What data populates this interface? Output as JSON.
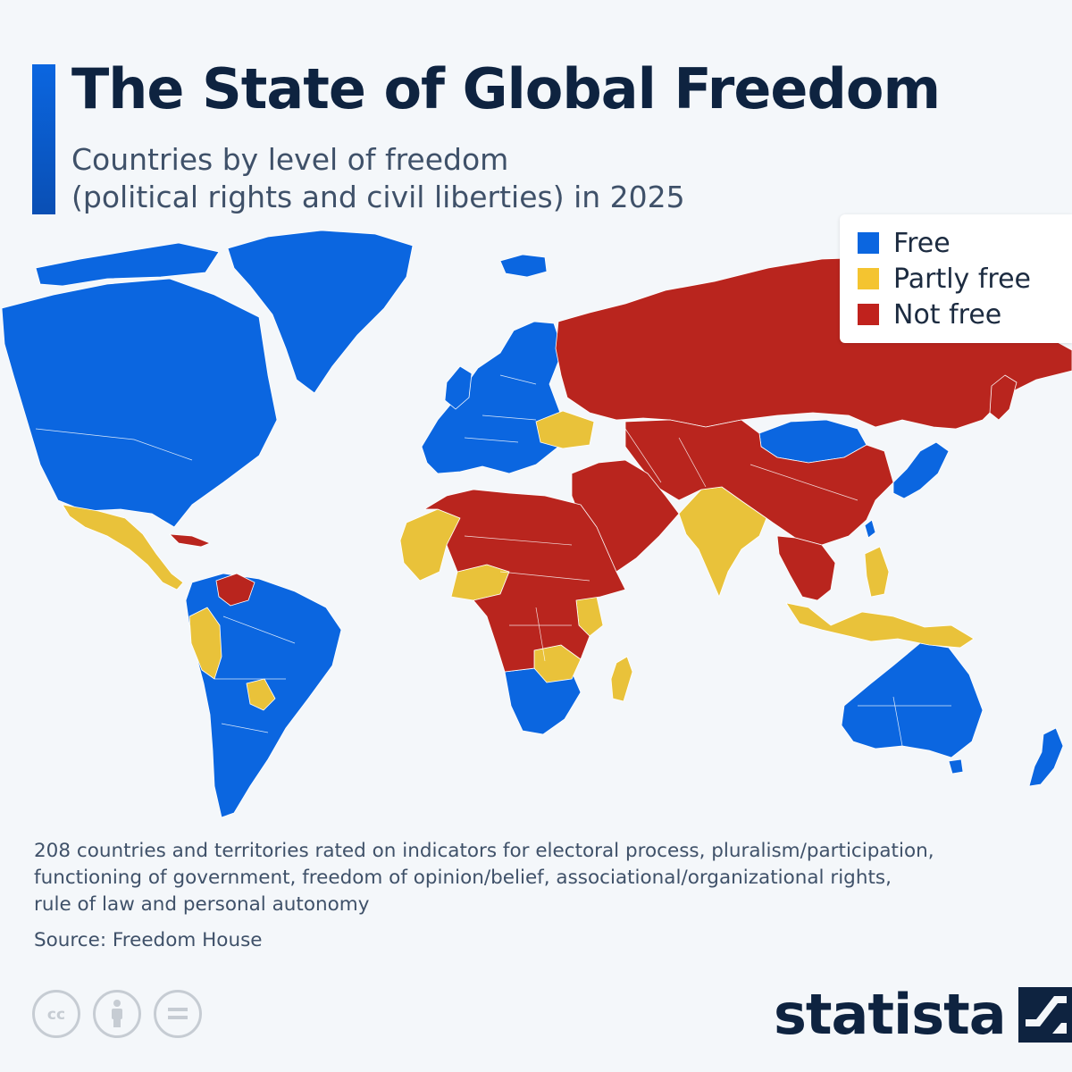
{
  "header": {
    "title": "The State of Global Freedom",
    "subtitle_line1": "Countries by level of freedom",
    "subtitle_line2": "(political rights and civil liberties) in 2025"
  },
  "legend": {
    "items": [
      {
        "label": "Free",
        "color": "#0b66e0"
      },
      {
        "label": "Partly free",
        "color": "#f4c430"
      },
      {
        "label": "Not free",
        "color": "#c0221d"
      }
    ]
  },
  "map": {
    "colors": {
      "free": "#0b66e0",
      "partly_free": "#e9c23a",
      "not_free": "#b9251e",
      "ocean": "#f4f7fa"
    }
  },
  "footer": {
    "description_line1": "208 countries and territories rated on indicators for electoral process, pluralism/participation,",
    "description_line2": "functioning of government, freedom of opinion/belief, associational/organizational rights,",
    "description_line3": "rule of law and personal autonomy",
    "source": "Source: Freedom House",
    "brand": "statista",
    "license_icons": [
      "cc-icon",
      "attribution-icon",
      "no-derivatives-icon"
    ]
  }
}
